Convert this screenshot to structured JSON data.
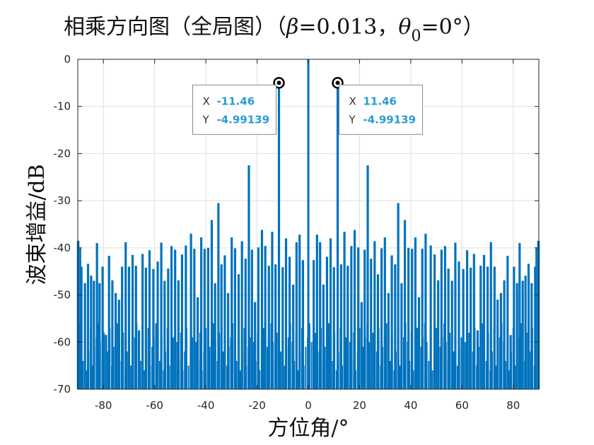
{
  "chart_data": {
    "type": "line",
    "title_main": "相乘方向图（全局图）（",
    "title_beta": "β",
    "title_beta_value": "=0.013，",
    "title_theta": "θ",
    "title_theta_sub": "0",
    "title_theta_value": "=0°）",
    "xlabel": "方位角/°",
    "ylabel": "波束增益/dB",
    "xlim": [
      -90,
      90
    ],
    "ylim": [
      -70,
      0
    ],
    "xticks": [
      -80,
      -60,
      -40,
      -20,
      0,
      20,
      40,
      60,
      80
    ],
    "yticks": [
      0,
      -10,
      -20,
      -30,
      -40,
      -50,
      -60,
      -70
    ],
    "grid": true,
    "line_color": "#0072BD",
    "peaks_deg_db": [
      [
        0,
        0
      ],
      [
        11.46,
        -4.99139
      ],
      [
        23.2,
        -22.5
      ],
      [
        35.1,
        -30.5
      ],
      [
        47.8,
        -39.5
      ],
      [
        60.5,
        -44.5
      ],
      [
        71.3,
        -38.8
      ],
      [
        82.5,
        -39.0
      ],
      [
        89.8,
        -38.5
      ],
      [
        2.1,
        -42.6
      ],
      [
        3.4,
        -37.2
      ],
      [
        4.6,
        -38.8
      ],
      [
        5.9,
        -47.8
      ],
      [
        7.3,
        -41.9
      ],
      [
        8.7,
        -38.0
      ],
      [
        10.0,
        -44.1
      ],
      [
        12.8,
        -43.5
      ],
      [
        14.1,
        -36.6
      ],
      [
        15.4,
        -43.8
      ],
      [
        16.8,
        -39.6
      ],
      [
        18.1,
        -36.2
      ],
      [
        19.5,
        -39.9
      ],
      [
        20.8,
        -51.5
      ],
      [
        22.0,
        -40.4
      ],
      [
        24.5,
        -42.3
      ],
      [
        25.9,
        -38.6
      ],
      [
        27.2,
        -45.6
      ],
      [
        28.6,
        -40.1
      ],
      [
        29.9,
        -37.8
      ],
      [
        31.3,
        -49.6
      ],
      [
        32.6,
        -41.6
      ],
      [
        33.9,
        -43.5
      ],
      [
        36.4,
        -47.5
      ],
      [
        37.7,
        -34.1
      ],
      [
        39.1,
        -40.0
      ],
      [
        40.5,
        -40.2
      ],
      [
        41.8,
        -37.8
      ],
      [
        43.2,
        -50.5
      ],
      [
        44.5,
        -40.2
      ],
      [
        45.8,
        -37.0
      ],
      [
        49.3,
        -41.4
      ],
      [
        50.7,
        -46.9
      ],
      [
        52.0,
        -40.4
      ],
      [
        53.4,
        -39.6
      ],
      [
        54.7,
        -44.4
      ],
      [
        56.1,
        -47.0
      ],
      [
        57.4,
        -38.9
      ],
      [
        58.8,
        -42.9
      ],
      [
        62.0,
        -40.5
      ],
      [
        63.4,
        -44.2
      ],
      [
        64.7,
        -41.3
      ],
      [
        66.1,
        -57.5
      ],
      [
        67.3,
        -43.8
      ],
      [
        68.6,
        -41.5
      ],
      [
        70.0,
        -44.0
      ],
      [
        72.7,
        -44.0
      ],
      [
        73.9,
        -51.0
      ],
      [
        75.2,
        -49.6
      ],
      [
        76.5,
        -46.9
      ],
      [
        77.8,
        -41.7
      ],
      [
        79.0,
        -58.5
      ],
      [
        80.3,
        -44.0
      ],
      [
        81.5,
        -47.5
      ],
      [
        83.7,
        -47.0
      ],
      [
        84.8,
        -45.9
      ],
      [
        86.0,
        -43.4
      ],
      [
        87.2,
        -47.5
      ],
      [
        88.6,
        -44.0
      ]
    ],
    "datatips": [
      {
        "x_label": "X",
        "y_label": "Y",
        "x": "-11.46",
        "y": "-4.99139",
        "side": "left"
      },
      {
        "x_label": "X",
        "y_label": "Y",
        "x": "11.46",
        "y": "-4.99139",
        "side": "right"
      }
    ]
  }
}
